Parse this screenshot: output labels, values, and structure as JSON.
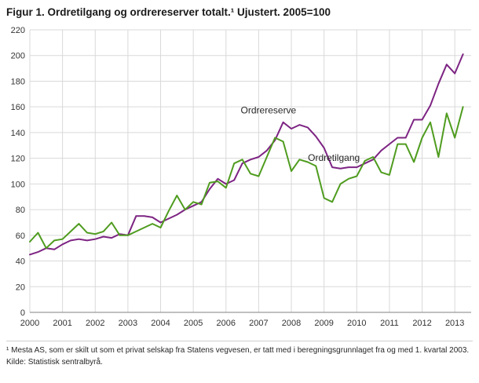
{
  "title": "Figur 1. Ordretilgang og ordrereserver totalt.¹ Ujustert. 2005=100",
  "footnotes": {
    "note1": "¹ Mesta AS, som er skilt ut som et privat selskap fra Statens vegvesen, er tatt med i beregningsgrunnlaget fra og med 1. kvartal 2003.",
    "source": "Kilde: Statistisk sentralbyrå."
  },
  "chart_data": {
    "type": "line",
    "title": "Figur 1. Ordretilgang og ordrereserver totalt. Ujustert. 2005=100",
    "x_unit": "quarter",
    "x_start": 2000,
    "x_step": 0.25,
    "xlim": [
      2000,
      2013.5
    ],
    "x_ticks": [
      "2000",
      "2001",
      "2002",
      "2003",
      "2004",
      "2005",
      "2006",
      "2007",
      "2008",
      "2009",
      "2010",
      "2011",
      "2012",
      "2013"
    ],
    "ylim": [
      0,
      220
    ],
    "y_tick_step": 20,
    "grid": true,
    "grid_color": "#d9d9d9",
    "axis_color": "#808080",
    "text_color": "#333333",
    "legend_position": "inline-annotations",
    "series": [
      {
        "name": "Ordrereserve",
        "color": "#7d2483",
        "values": [
          45,
          47,
          50,
          49,
          53,
          56,
          57,
          56,
          57,
          59,
          58,
          61,
          60,
          75,
          75,
          74,
          70,
          73,
          76,
          80,
          83,
          86,
          96,
          104,
          100,
          103,
          116,
          119,
          121,
          126,
          134,
          148,
          143,
          146,
          144,
          137,
          128,
          113,
          112,
          113,
          113,
          116,
          119,
          126,
          131,
          136,
          136,
          150,
          150,
          161,
          178,
          193,
          186,
          201
        ]
      },
      {
        "name": "Ordretilgang",
        "color": "#4f9c1f",
        "values": [
          55,
          62,
          50,
          56,
          57,
          63,
          69,
          62,
          61,
          63,
          70,
          60,
          60,
          63,
          66,
          69,
          66,
          79,
          91,
          80,
          86,
          84,
          101,
          102,
          97,
          116,
          119,
          108,
          106,
          121,
          136,
          133,
          110,
          119,
          117,
          114,
          89,
          86,
          100,
          104,
          106,
          118,
          121,
          109,
          107,
          131,
          131,
          117,
          136,
          148,
          121,
          155,
          136,
          160
        ]
      }
    ],
    "annotations": [
      {
        "text": "Ordrereserve",
        "x": 2007.3,
        "y": 155
      },
      {
        "text": "Ordretilgang",
        "x": 2009.3,
        "y": 118
      }
    ]
  }
}
